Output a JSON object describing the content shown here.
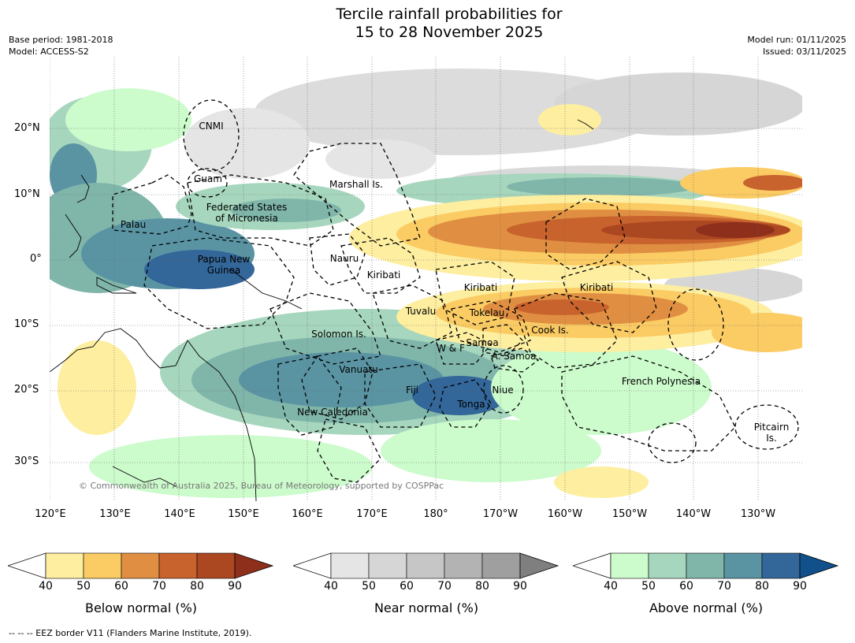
{
  "title": {
    "line1": "Tercile rainfall probabilities for",
    "line2": "15 to 28 November 2025"
  },
  "meta": {
    "base_period": "Base period: 1981-2018",
    "model": "Model: ACCESS-S2",
    "model_run": "Model run: 01/11/2025",
    "issued": "Issued: 03/11/2025"
  },
  "map": {
    "lat_labels": [
      "20°N",
      "10°N",
      "0°",
      "10°S",
      "20°S",
      "30°S"
    ],
    "lon_labels": [
      "120°E",
      "130°E",
      "140°E",
      "150°E",
      "160°E",
      "170°E",
      "180°",
      "170°W",
      "160°W",
      "150°W",
      "140°W",
      "130°W"
    ],
    "regions": {
      "cnmi": "CNMI",
      "guam": "Guam",
      "marshall": "Marshall Is.",
      "fsm_1": "Federated States",
      "fsm_2": "of Micronesia",
      "palau": "Palau",
      "png_1": "Papua New",
      "png_2": "Guinea",
      "nauru": "Nauru",
      "kiribati_w": "Kiribati",
      "kiribati_c": "Kiribati",
      "kiribati_e": "Kiribati",
      "tuvalu": "Tuvalu",
      "tokelau": "Tokelau",
      "solomon": "Solomon Is.",
      "wf": "W & F",
      "samoa": "Samoa",
      "asamoa": "A. Samoa",
      "cook": "Cook Is.",
      "vanuatu": "Vanuatu",
      "fiji": "Fiji",
      "niue": "Niue",
      "tonga": "Tonga",
      "french_polynesia": "French Polynesia",
      "new_caledonia": "New Caledonia",
      "pitcairn_1": "Pitcairn",
      "pitcairn_2": "Is."
    },
    "copyright": "© Commonwealth of Australia 2025, Bureau of Meteorology, supported by COSPPac"
  },
  "colorbars": [
    {
      "title": "Below normal (%)",
      "ticks": [
        "40",
        "50",
        "60",
        "70",
        "80",
        "90"
      ],
      "colors": [
        "#ffffff",
        "#fdeea0",
        "#fbcb64",
        "#e08f42",
        "#c9632e",
        "#ab4721",
        "#8e2f1c"
      ]
    },
    {
      "title": "Near normal (%)",
      "ticks": [
        "40",
        "50",
        "60",
        "70",
        "80",
        "90"
      ],
      "colors": [
        "#ffffff",
        "#e5e5e5",
        "#d6d6d6",
        "#c6c6c6",
        "#b3b3b3",
        "#9f9f9f",
        "#7f7f7f"
      ]
    },
    {
      "title": "Above normal (%)",
      "ticks": [
        "40",
        "50",
        "60",
        "70",
        "80",
        "90"
      ],
      "colors": [
        "#ffffff",
        "#ccfbcc",
        "#a6d6bd",
        "#80b5aa",
        "#5a94a3",
        "#336699",
        "#11508a"
      ]
    }
  ],
  "footer": "--  --  -- EEZ border V11 (Flanders Marine Institute, 2019)."
}
